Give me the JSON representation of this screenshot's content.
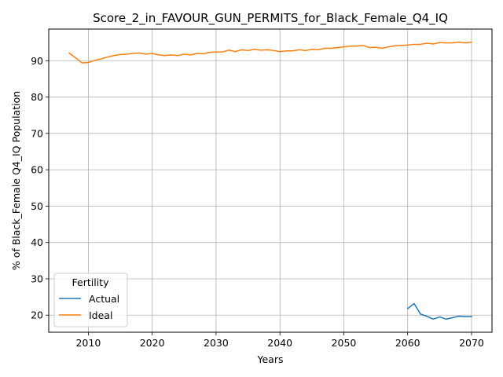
{
  "chart_data": {
    "type": "line",
    "title": "Score_2_in_FAVOUR_GUN_PERMITS_for_Black_Female_Q4_IQ",
    "xlabel": "Years",
    "ylabel": "% of Black_Female Q4_IQ Population",
    "xlim": [
      2003.8,
      2073.2
    ],
    "ylim": [
      15.3,
      98.7
    ],
    "xticks": [
      2010,
      2020,
      2030,
      2040,
      2050,
      2060,
      2070
    ],
    "yticks": [
      20,
      30,
      40,
      50,
      60,
      70,
      80,
      90
    ],
    "grid": true,
    "legend": {
      "title": "Fertility",
      "position": "lower-left"
    },
    "series": [
      {
        "name": "Actual",
        "color": "#1f77b4",
        "x": [
          2060,
          2061,
          2062,
          2063,
          2064,
          2065,
          2066,
          2067,
          2068,
          2069,
          2070
        ],
        "y": [
          21.8,
          23.2,
          20.3,
          19.7,
          18.9,
          19.5,
          18.9,
          19.3,
          19.7,
          19.6,
          19.6
        ]
      },
      {
        "name": "Ideal",
        "color": "#ff7f0e",
        "x": [
          2007,
          2008,
          2009,
          2010,
          2011,
          2012,
          2013,
          2014,
          2015,
          2016,
          2017,
          2018,
          2019,
          2020,
          2021,
          2022,
          2023,
          2024,
          2025,
          2026,
          2027,
          2028,
          2029,
          2030,
          2031,
          2032,
          2033,
          2034,
          2035,
          2036,
          2037,
          2038,
          2039,
          2040,
          2041,
          2042,
          2043,
          2044,
          2045,
          2046,
          2047,
          2048,
          2049,
          2050,
          2051,
          2052,
          2053,
          2054,
          2055,
          2056,
          2057,
          2058,
          2059,
          2060,
          2061,
          2062,
          2063,
          2064,
          2065,
          2066,
          2067,
          2068,
          2069,
          2070
        ],
        "y": [
          92.1,
          90.8,
          89.4,
          89.5,
          90.1,
          90.5,
          91.0,
          91.4,
          91.7,
          91.8,
          92.0,
          92.1,
          91.8,
          92.0,
          91.6,
          91.4,
          91.6,
          91.4,
          91.8,
          91.6,
          92.0,
          91.9,
          92.3,
          92.4,
          92.4,
          92.9,
          92.5,
          93.0,
          92.8,
          93.1,
          92.9,
          93.0,
          92.8,
          92.5,
          92.7,
          92.7,
          93.0,
          92.8,
          93.1,
          93.0,
          93.4,
          93.4,
          93.6,
          93.8,
          94.0,
          94.0,
          94.2,
          93.6,
          93.7,
          93.4,
          93.8,
          94.1,
          94.2,
          94.3,
          94.5,
          94.5,
          94.8,
          94.6,
          95.0,
          94.9,
          94.9,
          95.1,
          94.9,
          95.1
        ]
      }
    ]
  }
}
